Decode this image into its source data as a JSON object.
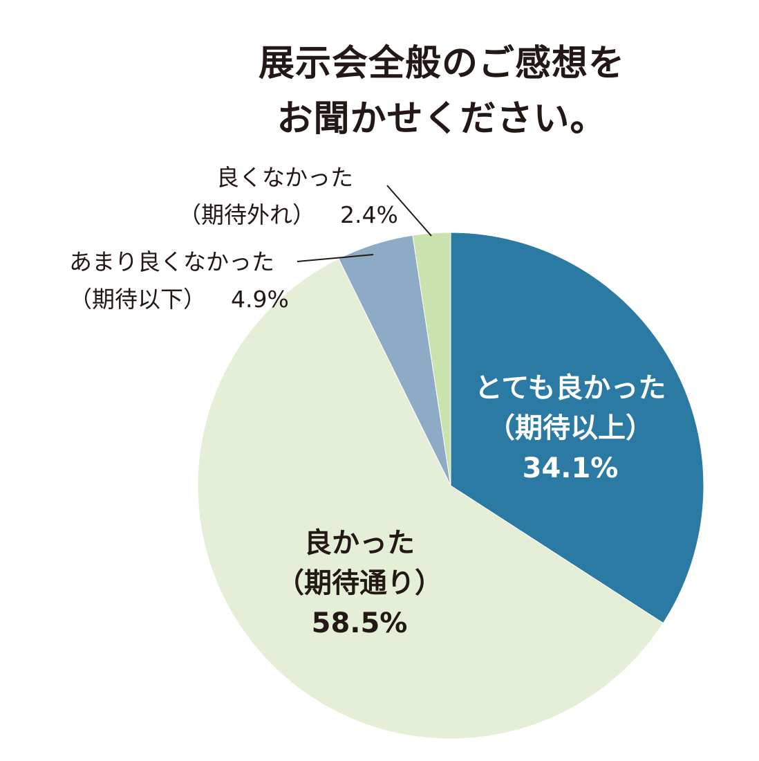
{
  "chart_data": {
    "type": "pie",
    "title": "展示会全般のご感想を\nお聞かせください。",
    "title_lines": [
      "展示会全般のご感想を",
      "お聞かせください。"
    ],
    "slices": [
      {
        "name_lines": [
          "とても良かった",
          "（期待以上）"
        ],
        "label": "34.1%",
        "value": 34.1,
        "color": "#2b7aa3"
      },
      {
        "name_lines": [
          "良かった",
          "（期待通り）"
        ],
        "label": "58.5%",
        "value": 58.5,
        "color": "#e5efd7"
      },
      {
        "name_lines": [
          "あまり良くなかった",
          "（期待以下）"
        ],
        "label": "4.9%",
        "value": 4.9,
        "color": "#8eabc6"
      },
      {
        "name_lines": [
          "良くなかった",
          "（期待外れ）"
        ],
        "label": "2.4%",
        "value": 2.4,
        "color": "#c9e2ae"
      }
    ]
  }
}
